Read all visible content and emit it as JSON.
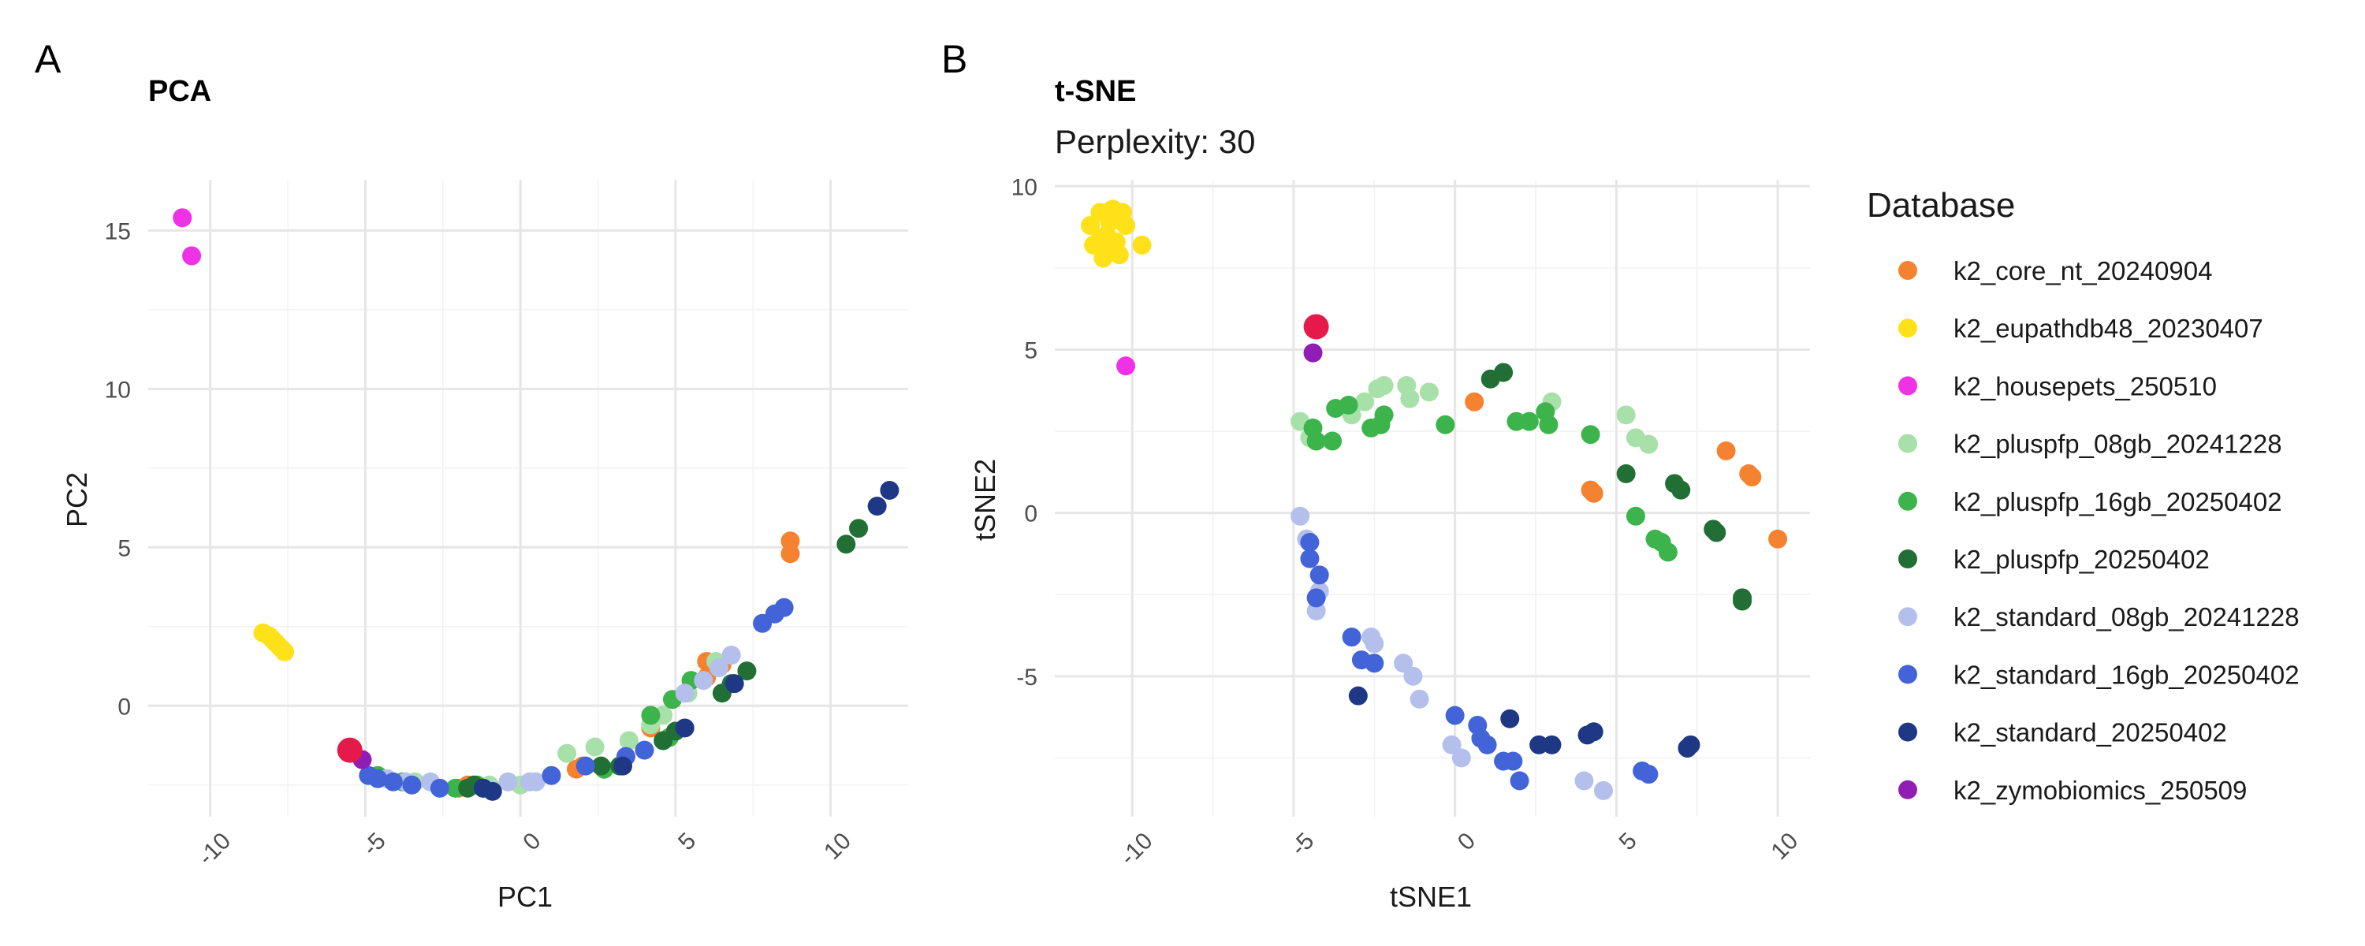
{
  "panels": [
    {
      "tag": "A",
      "title": "PCA",
      "subtitle": ""
    },
    {
      "tag": "B",
      "title": "t-SNE",
      "subtitle": "Perplexity: 30"
    }
  ],
  "legend": {
    "title": "Database",
    "items": [
      {
        "label": "k2_core_nt_20240904",
        "color": "#F58231"
      },
      {
        "label": "k2_eupathdb48_20230407",
        "color": "#FFE119"
      },
      {
        "label": "k2_housepets_250510",
        "color": "#F032E6"
      },
      {
        "label": "k2_pluspfp_08gb_20241228",
        "color": "#A8E0A9"
      },
      {
        "label": "k2_pluspfp_16gb_20250402",
        "color": "#3CB44B"
      },
      {
        "label": "k2_pluspfp_20250402",
        "color": "#216F35"
      },
      {
        "label": "k2_standard_08gb_20241228",
        "color": "#B4C0EB"
      },
      {
        "label": "k2_standard_16gb_20250402",
        "color": "#4363D8"
      },
      {
        "label": "k2_standard_20250402",
        "color": "#1F3885"
      },
      {
        "label": "k2_zymobiomics_250509",
        "color": "#911EB4"
      }
    ]
  },
  "highlight_color": "#E6194B",
  "chart_data": [
    {
      "type": "scatter",
      "title": "PCA",
      "xlabel": "PC1",
      "ylabel": "PC2",
      "xlim": [
        -12,
        12.5
      ],
      "ylim": [
        -3.5,
        16.6
      ],
      "xticks": [
        -10,
        -5,
        0,
        5,
        10
      ],
      "yticks": [
        0,
        5,
        10,
        15
      ],
      "x_tick_labels": [
        "-10",
        "-5",
        "0",
        "5",
        "10"
      ],
      "y_tick_labels": [
        "0",
        "5",
        "10",
        "15"
      ],
      "series": [
        {
          "name": "k2_core_nt_20240904",
          "points": [
            [
              8.7,
              5.2
            ],
            [
              8.7,
              4.8
            ],
            [
              6.0,
              1.4
            ],
            [
              6.0,
              0.9
            ],
            [
              6.5,
              1.3
            ],
            [
              4.2,
              -0.7
            ],
            [
              2.0,
              -1.9
            ],
            [
              1.8,
              -2.0
            ],
            [
              -2.0,
              -2.6
            ],
            [
              -1.7,
              -2.5
            ]
          ]
        },
        {
          "name": "k2_eupathdb48_20230407",
          "points": [
            [
              -8.3,
              2.3
            ],
            [
              -8.1,
              2.2
            ],
            [
              -8.0,
              2.1
            ],
            [
              -7.9,
              2.0
            ],
            [
              -7.8,
              1.9
            ],
            [
              -7.7,
              1.8
            ],
            [
              -7.6,
              1.7
            ]
          ]
        },
        {
          "name": "k2_housepets_250510",
          "points": [
            [
              -10.9,
              15.4
            ],
            [
              -10.6,
              14.2
            ]
          ]
        },
        {
          "name": "k2_pluspfp_08gb_20241228",
          "points": [
            [
              1.5,
              -1.5
            ],
            [
              2.4,
              -1.3
            ],
            [
              3.5,
              -1.1
            ],
            [
              4.2,
              -0.6
            ],
            [
              4.6,
              -0.3
            ],
            [
              5.4,
              0.4
            ],
            [
              6.3,
              1.4
            ],
            [
              -3.4,
              -2.4
            ],
            [
              -1.0,
              -2.5
            ],
            [
              0.0,
              -2.5
            ]
          ]
        },
        {
          "name": "k2_pluspfp_16gb_20250402",
          "points": [
            [
              4.2,
              -0.3
            ],
            [
              4.9,
              0.2
            ],
            [
              5.5,
              0.8
            ],
            [
              4.8,
              -1.0
            ],
            [
              2.7,
              -2.0
            ],
            [
              -4.6,
              -2.2
            ],
            [
              -3.8,
              -2.4
            ],
            [
              -2.1,
              -2.6
            ],
            [
              -1.4,
              -2.5
            ]
          ]
        },
        {
          "name": "k2_pluspfp_20250402",
          "points": [
            [
              10.5,
              5.1
            ],
            [
              10.9,
              5.6
            ],
            [
              7.3,
              1.1
            ],
            [
              6.8,
              0.7
            ],
            [
              6.5,
              0.4
            ],
            [
              5.0,
              -0.8
            ],
            [
              4.6,
              -1.1
            ],
            [
              3.2,
              -1.9
            ],
            [
              2.6,
              -1.9
            ],
            [
              -1.7,
              -2.6
            ],
            [
              -1.2,
              -2.6
            ],
            [
              -1.5,
              -2.5
            ]
          ]
        },
        {
          "name": "k2_standard_08gb_20241228",
          "points": [
            [
              6.8,
              1.6
            ],
            [
              6.4,
              1.2
            ],
            [
              5.9,
              0.8
            ],
            [
              5.3,
              0.4
            ],
            [
              0.3,
              -2.4
            ],
            [
              0.5,
              -2.4
            ],
            [
              -0.4,
              -2.4
            ],
            [
              -2.9,
              -2.4
            ],
            [
              -3.7,
              -2.4
            ],
            [
              -4.3,
              -2.3
            ]
          ]
        },
        {
          "name": "k2_standard_16gb_20250402",
          "points": [
            [
              7.8,
              2.6
            ],
            [
              8.2,
              2.9
            ],
            [
              8.5,
              3.1
            ],
            [
              4.0,
              -1.4
            ],
            [
              3.4,
              -1.6
            ],
            [
              2.1,
              -1.9
            ],
            [
              1.0,
              -2.2
            ],
            [
              -2.6,
              -2.6
            ],
            [
              -3.5,
              -2.5
            ],
            [
              -4.1,
              -2.4
            ],
            [
              -4.6,
              -2.3
            ],
            [
              -4.9,
              -2.2
            ]
          ]
        },
        {
          "name": "k2_standard_20250402",
          "points": [
            [
              11.5,
              6.3
            ],
            [
              11.9,
              6.8
            ],
            [
              6.9,
              0.7
            ],
            [
              5.3,
              -0.7
            ],
            [
              3.3,
              -1.9
            ],
            [
              -0.9,
              -2.7
            ],
            [
              -1.2,
              -2.6
            ]
          ]
        },
        {
          "name": "k2_zymobiomics_250509",
          "points": [
            [
              -5.1,
              -1.7
            ]
          ]
        }
      ],
      "highlight": [
        [
          -5.5,
          -1.4
        ]
      ]
    },
    {
      "type": "scatter",
      "title": "t-SNE",
      "subtitle": "Perplexity: 30",
      "xlabel": "tSNE1",
      "ylabel": "tSNE2",
      "xlim": [
        -12.4,
        11.0
      ],
      "ylim": [
        -9.3,
        10.2
      ],
      "xticks": [
        -10,
        -5,
        0,
        5,
        10
      ],
      "yticks": [
        -5,
        0,
        5,
        10
      ],
      "x_tick_labels": [
        "-10",
        "-5",
        "0",
        "5",
        "10"
      ],
      "y_tick_labels": [
        "-5",
        "0",
        "5",
        "10"
      ],
      "series": [
        {
          "name": "k2_core_nt_20240904",
          "points": [
            [
              0.6,
              3.4
            ],
            [
              4.2,
              0.7
            ],
            [
              4.3,
              0.6
            ],
            [
              8.4,
              1.9
            ],
            [
              9.1,
              1.2
            ],
            [
              9.2,
              1.1
            ],
            [
              10.0,
              -0.8
            ]
          ]
        },
        {
          "name": "k2_eupathdb48_20230407",
          "points": [
            [
              -11.3,
              8.8
            ],
            [
              -11.0,
              9.2
            ],
            [
              -10.6,
              9.3
            ],
            [
              -10.3,
              9.2
            ],
            [
              -11.2,
              8.2
            ],
            [
              -10.8,
              8.5
            ],
            [
              -10.5,
              8.3
            ],
            [
              -10.9,
              7.8
            ],
            [
              -10.4,
              7.9
            ],
            [
              -10.7,
              8.9
            ],
            [
              -9.7,
              8.2
            ],
            [
              -11.0,
              8.4
            ],
            [
              -10.2,
              8.8
            ],
            [
              -10.8,
              8.1
            ]
          ]
        },
        {
          "name": "k2_housepets_250510",
          "points": [
            [
              -10.2,
              4.5
            ]
          ]
        },
        {
          "name": "k2_pluspfp_08gb_20241228",
          "points": [
            [
              -4.8,
              2.8
            ],
            [
              -4.5,
              2.3
            ],
            [
              -3.2,
              3.0
            ],
            [
              -2.8,
              3.4
            ],
            [
              -2.4,
              3.8
            ],
            [
              -2.2,
              3.9
            ],
            [
              -1.5,
              3.9
            ],
            [
              -1.4,
              3.5
            ],
            [
              -0.8,
              3.7
            ],
            [
              3.0,
              3.4
            ],
            [
              5.3,
              3.0
            ],
            [
              5.6,
              2.3
            ],
            [
              6.0,
              2.1
            ]
          ]
        },
        {
          "name": "k2_pluspfp_16gb_20250402",
          "points": [
            [
              -4.3,
              2.2
            ],
            [
              -3.8,
              2.2
            ],
            [
              -4.4,
              2.6
            ],
            [
              -3.7,
              3.2
            ],
            [
              -3.3,
              3.3
            ],
            [
              -2.6,
              2.6
            ],
            [
              -2.2,
              3.0
            ],
            [
              -2.3,
              2.7
            ],
            [
              -0.3,
              2.7
            ],
            [
              1.9,
              2.8
            ],
            [
              2.3,
              2.8
            ],
            [
              2.8,
              3.1
            ],
            [
              2.9,
              2.7
            ],
            [
              4.2,
              2.4
            ],
            [
              5.6,
              -0.1
            ],
            [
              6.2,
              -0.8
            ],
            [
              6.4,
              -0.9
            ],
            [
              6.6,
              -1.2
            ]
          ]
        },
        {
          "name": "k2_pluspfp_20250402",
          "points": [
            [
              1.1,
              4.1
            ],
            [
              1.5,
              4.3
            ],
            [
              5.3,
              1.2
            ],
            [
              6.8,
              0.9
            ],
            [
              7.0,
              0.7
            ],
            [
              8.0,
              -0.5
            ],
            [
              8.1,
              -0.6
            ],
            [
              8.9,
              -2.6
            ],
            [
              8.9,
              -2.7
            ]
          ]
        },
        {
          "name": "k2_standard_08gb_20241228",
          "points": [
            [
              -4.8,
              -0.1
            ],
            [
              -4.6,
              -0.8
            ],
            [
              -4.2,
              -2.4
            ],
            [
              -4.3,
              -3.0
            ],
            [
              -2.6,
              -3.8
            ],
            [
              -2.5,
              -4.0
            ],
            [
              -1.6,
              -4.6
            ],
            [
              -1.3,
              -5.0
            ],
            [
              -1.1,
              -5.7
            ],
            [
              -0.1,
              -7.1
            ],
            [
              0.2,
              -7.5
            ],
            [
              4.0,
              -8.2
            ],
            [
              4.6,
              -8.5
            ]
          ]
        },
        {
          "name": "k2_standard_16gb_20250402",
          "points": [
            [
              -4.5,
              -0.9
            ],
            [
              -4.5,
              -1.4
            ],
            [
              -4.2,
              -1.9
            ],
            [
              -4.3,
              -2.6
            ],
            [
              -3.2,
              -3.8
            ],
            [
              -2.9,
              -4.5
            ],
            [
              -2.5,
              -4.6
            ],
            [
              0.0,
              -6.2
            ],
            [
              0.7,
              -6.5
            ],
            [
              0.8,
              -6.9
            ],
            [
              1.0,
              -7.1
            ],
            [
              1.5,
              -7.6
            ],
            [
              1.8,
              -7.6
            ],
            [
              2.0,
              -8.2
            ],
            [
              5.8,
              -7.9
            ],
            [
              6.0,
              -8.0
            ]
          ]
        },
        {
          "name": "k2_standard_20250402",
          "points": [
            [
              -3.0,
              -5.6
            ],
            [
              1.7,
              -6.3
            ],
            [
              2.6,
              -7.1
            ],
            [
              3.0,
              -7.1
            ],
            [
              4.1,
              -6.8
            ],
            [
              4.3,
              -6.7
            ],
            [
              7.2,
              -7.2
            ],
            [
              7.3,
              -7.1
            ]
          ]
        },
        {
          "name": "k2_zymobiomics_250509",
          "points": [
            [
              -4.4,
              4.9
            ]
          ]
        }
      ],
      "highlight": [
        [
          -4.3,
          5.7
        ]
      ]
    }
  ]
}
